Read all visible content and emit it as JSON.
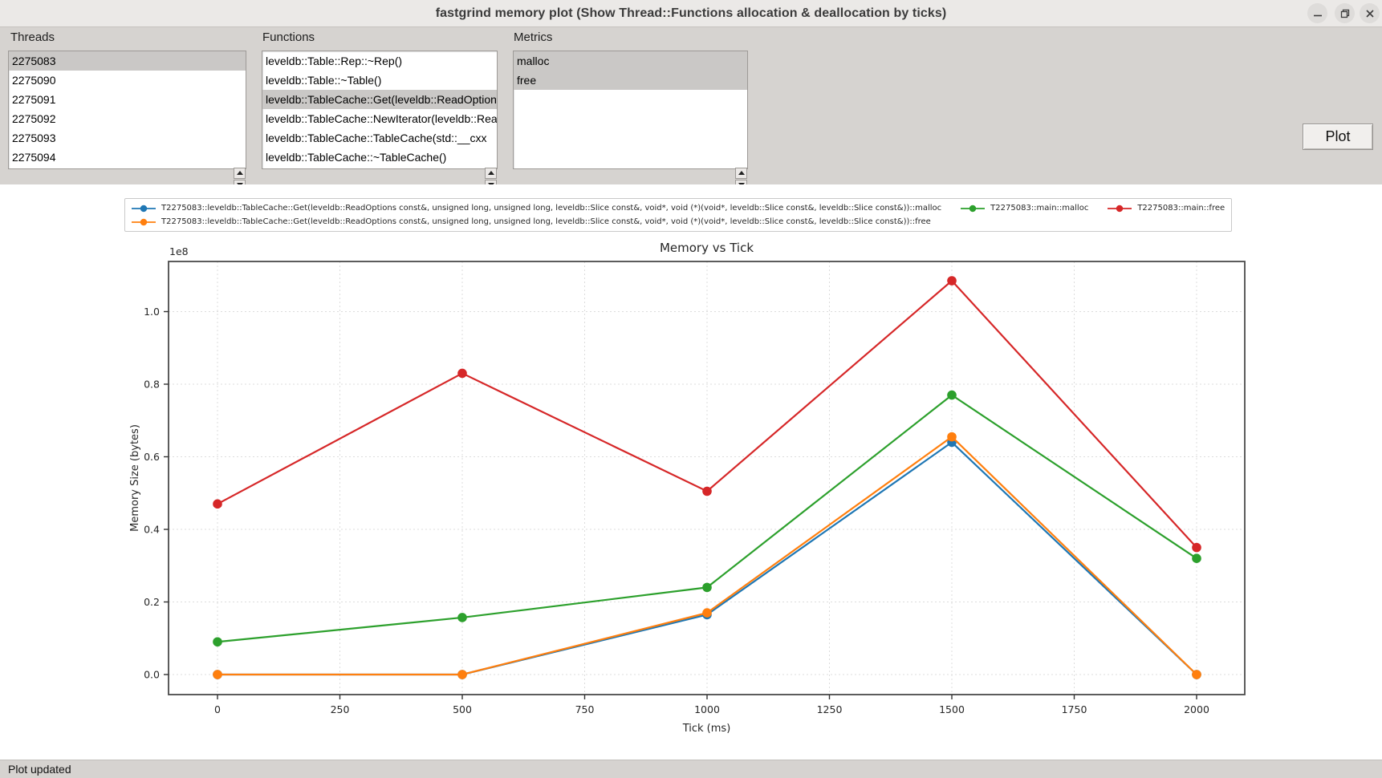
{
  "window": {
    "title": "fastgrind memory plot (Show Thread::Functions allocation & deallocation by ticks)",
    "controls": [
      "minimize",
      "maximize",
      "close"
    ]
  },
  "controls_panel": {
    "threads": {
      "label": "Threads",
      "items": [
        "2275083",
        "2275090",
        "2275091",
        "2275092",
        "2275093",
        "2275094"
      ],
      "selected": [
        0
      ]
    },
    "functions": {
      "label": "Functions",
      "items": [
        "leveldb::Table::Rep::~Rep()",
        "leveldb::Table::~Table()",
        "leveldb::TableCache::Get(leveldb::ReadOptions const&, unsigned long, unsigned long, leveldb::Slice const&, void*, void (*)(void*, leveldb::Slice const&, leveldb::Slice const&))",
        "leveldb::TableCache::NewIterator(leveldb::ReadOptions const&, unsigned long, unsigned long, leveldb::Cache",
        "leveldb::TableCache::TableCache(std::__cxx",
        "leveldb::TableCache::~TableCache()"
      ],
      "selected": [
        2
      ]
    },
    "metrics": {
      "label": "Metrics",
      "items": [
        "malloc",
        "free"
      ],
      "selected": [
        0,
        1
      ]
    },
    "plot_button_label": "Plot"
  },
  "status_bar": {
    "text": "Plot updated"
  },
  "colors": {
    "panel": "#d6d3d0",
    "titlebar": "#ebe9e7",
    "selection": "#cac8c6",
    "series_blue": "#1f77b4",
    "series_orange": "#ff7f0e",
    "series_green": "#2ca02c",
    "series_red": "#d62728"
  },
  "chart_data": {
    "type": "line",
    "title": "Memory vs Tick",
    "xlabel": "Tick (ms)",
    "ylabel": "Memory Size (bytes)",
    "y_offset_text": "1e8",
    "x": [
      0,
      500,
      1000,
      1500,
      2000
    ],
    "xticks": [
      0,
      250,
      500,
      750,
      1000,
      1250,
      1500,
      1750,
      2000
    ],
    "ytick_labels": [
      "0.0",
      "0.2",
      "0.4",
      "0.6",
      "0.8",
      "1.0"
    ],
    "ytick_values_e8": [
      0.0,
      0.2,
      0.4,
      0.6,
      0.8,
      1.0
    ],
    "xlim": [
      -100,
      2100
    ],
    "ylim_e8": [
      -0.055,
      1.14
    ],
    "grid": true,
    "legend_position": "upper left, outside top, two rows",
    "series": [
      {
        "name": "T2275083::leveldb::TableCache::Get(leveldb::ReadOptions const&, unsigned long, unsigned long, leveldb::Slice const&, void*, void (*)(void*, leveldb::Slice const&, leveldb::Slice const&))::malloc",
        "color": "#1f77b4",
        "values_e8": [
          0.0,
          0.0,
          0.165,
          0.64,
          0.0
        ]
      },
      {
        "name": "T2275083::leveldb::TableCache::Get(leveldb::ReadOptions const&, unsigned long, unsigned long, leveldb::Slice const&, void*, void (*)(void*, leveldb::Slice const&, leveldb::Slice const&))::free",
        "color": "#ff7f0e",
        "values_e8": [
          0.0,
          0.0,
          0.17,
          0.655,
          0.0
        ]
      },
      {
        "name": "T2275083::main::malloc",
        "color": "#2ca02c",
        "values_e8": [
          0.09,
          0.157,
          0.24,
          0.77,
          0.32
        ]
      },
      {
        "name": "T2275083::main::free",
        "color": "#d62728",
        "values_e8": [
          0.47,
          0.83,
          0.505,
          1.085,
          0.35
        ]
      }
    ],
    "legend_rows": [
      [
        0,
        2,
        3
      ],
      [
        1
      ]
    ],
    "draw_order": [
      0,
      1,
      2,
      3
    ]
  }
}
